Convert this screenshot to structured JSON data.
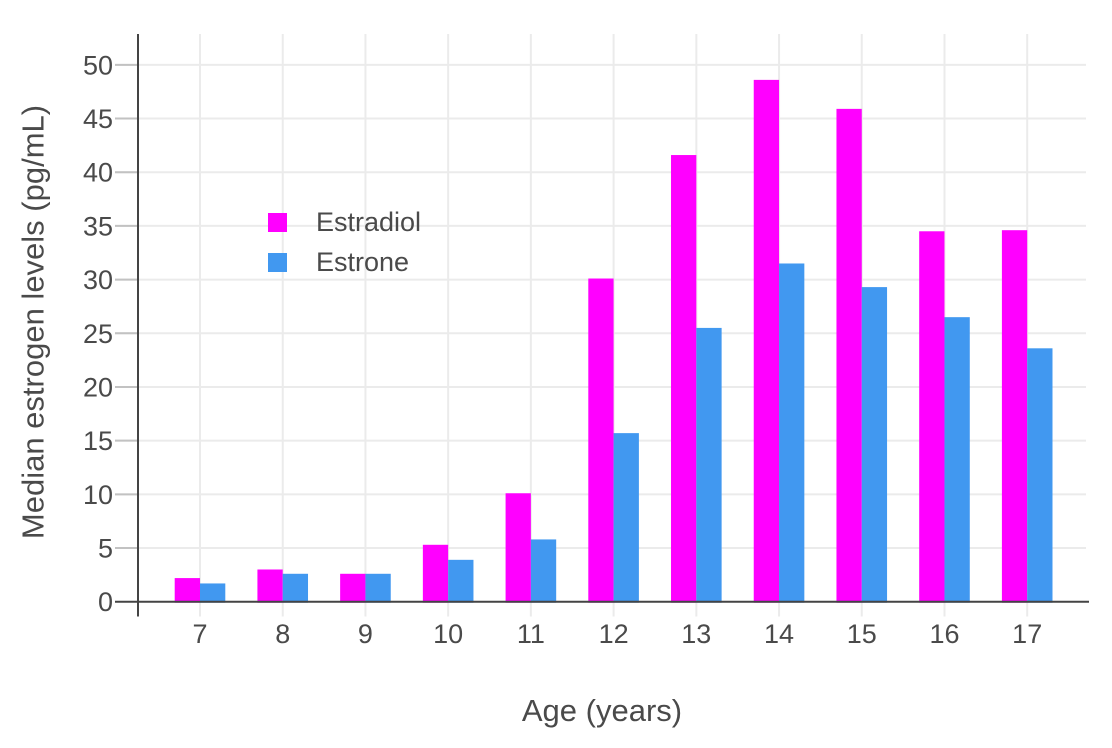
{
  "figure": {
    "background_color": "#ffffff",
    "text_color": "#4a4a4a",
    "grid_color": "#ebebeb",
    "axis_line_color": "#444444",
    "tick_mark_color": "#c2c2c2"
  },
  "chart_data": {
    "type": "bar",
    "title": "",
    "xlabel": "Age (years)",
    "ylabel": "Median estrogen levels (pg/mL)",
    "categories": [
      7,
      8,
      9,
      10,
      11,
      12,
      13,
      14,
      15,
      16,
      17
    ],
    "series": [
      {
        "name": "Estradiol",
        "color": "#ff00ff",
        "values": [
          2.2,
          3.0,
          2.6,
          5.3,
          10.1,
          30.1,
          41.6,
          48.6,
          45.9,
          34.5,
          34.6
        ]
      },
      {
        "name": "Estrone",
        "color": "#4198f0",
        "values": [
          1.7,
          2.6,
          2.6,
          3.9,
          5.8,
          15.7,
          25.5,
          31.5,
          29.3,
          26.5,
          23.6
        ]
      }
    ],
    "ylim": [
      0,
      52.9
    ],
    "yticks": [
      0,
      5,
      10,
      15,
      20,
      25,
      30,
      35,
      40,
      45,
      50
    ],
    "grid": true,
    "legend_position": "inside-upper-left"
  }
}
